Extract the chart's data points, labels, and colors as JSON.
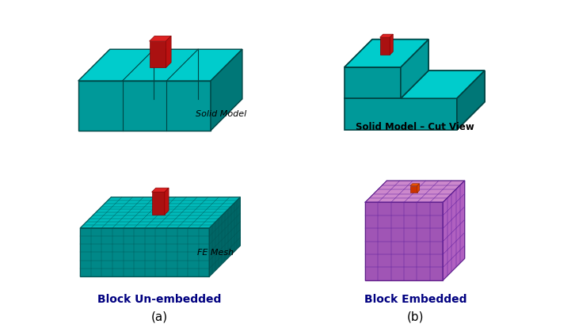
{
  "cyan_top": "#00CCCC",
  "cyan_front": "#009999",
  "cyan_right": "#007777",
  "cyan_top2": "#00BBBB",
  "cyan_front2": "#008888",
  "cyan_right2": "#006666",
  "red_top": "#DD2222",
  "red_front": "#AA1111",
  "red_right": "#BB1111",
  "purp_top": "#CC88CC",
  "purp_front": "#A055B5",
  "purp_right": "#B060C0",
  "orange_top": "#EE5500",
  "orange_front": "#CC3300",
  "orange_right": "#DD4400",
  "edge_cyan": "#004444",
  "edge_red": "#880000",
  "edge_purp": "#602080",
  "edge_orange": "#882200",
  "mesh_cyan": "#005555",
  "mesh_purp": "#6020A0",
  "label_color": "#000080",
  "label_fontsize": 10,
  "figsize": [
    7.26,
    4.1
  ],
  "dpi": 100,
  "labels": {
    "solid_model": "Solid Model",
    "cut_view": "Solid Model – Cut View",
    "fe_mesh": "FE Mesh",
    "block_un": "Block Un-embedded",
    "block_em": "Block Embedded",
    "a": "(a)",
    "b": "(b)"
  }
}
